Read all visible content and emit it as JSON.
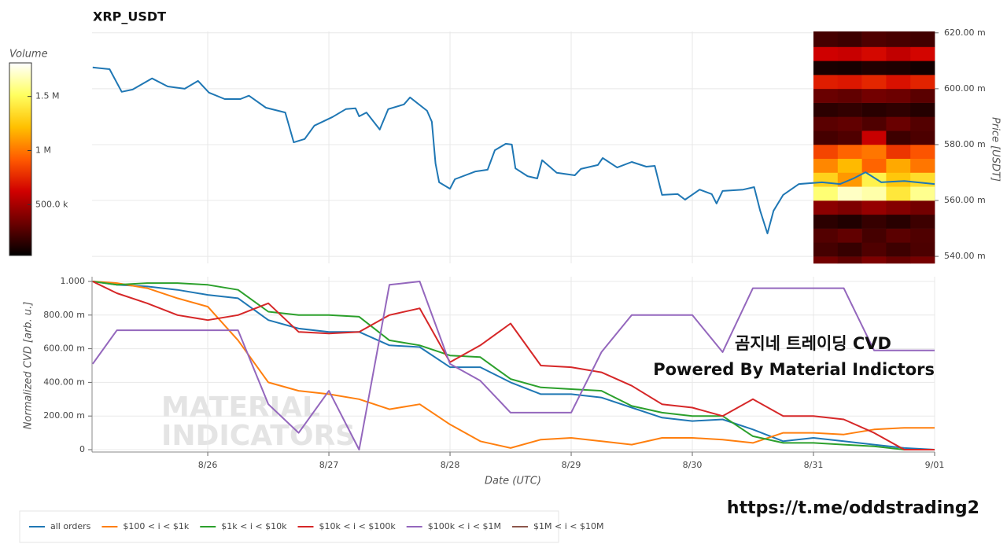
{
  "chart_data": [
    {
      "type": "line",
      "title": "XRP_USDT",
      "y_label": "Price [USDT]",
      "x": [
        25.05,
        25.19,
        25.29,
        25.38,
        25.54,
        25.67,
        25.81,
        25.92,
        26.01,
        26.14,
        26.27,
        26.34,
        26.48,
        26.64,
        26.71,
        26.8,
        26.88,
        27.03,
        27.14,
        27.22,
        27.25,
        27.31,
        27.42,
        27.49,
        27.62,
        27.67,
        27.81,
        27.85,
        27.88,
        27.91,
        28.0,
        28.04,
        28.21,
        28.31,
        28.37,
        28.46,
        28.51,
        28.54,
        28.64,
        28.72,
        28.76,
        28.88,
        29.03,
        29.08,
        29.22,
        29.26,
        29.38,
        29.5,
        29.62,
        29.69,
        29.75,
        29.88,
        29.94,
        30.06,
        30.16,
        30.2,
        30.25,
        30.42,
        30.51,
        30.56,
        30.62,
        30.67,
        30.75,
        30.88,
        31.07,
        31.22,
        31.33,
        31.43,
        31.56,
        31.75,
        32.0
      ],
      "series": [
        {
          "color": "#1f77b4",
          "values": [
            607.6,
            607.0,
            598.9,
            599.7,
            603.7,
            600.8,
            600.0,
            602.8,
            598.6,
            596.3,
            596.3,
            597.5,
            593.2,
            591.5,
            580.8,
            582.0,
            586.8,
            589.9,
            592.7,
            593.0,
            590.1,
            591.5,
            585.4,
            592.7,
            594.4,
            596.9,
            592.1,
            588.2,
            573.2,
            566.5,
            564.2,
            567.6,
            570.4,
            571.0,
            578.0,
            580.3,
            580.0,
            571.5,
            568.7,
            567.9,
            574.4,
            569.9,
            569.0,
            571.3,
            572.7,
            575.2,
            571.8,
            573.8,
            572.1,
            572.4,
            562.0,
            562.3,
            560.3,
            563.9,
            562.3,
            558.9,
            563.4,
            563.9,
            564.8,
            556.3,
            548.2,
            556.3,
            562.0,
            565.9,
            566.5,
            565.9,
            567.9,
            570.1,
            566.5,
            567.0,
            565.9
          ]
        }
      ],
      "xlim": [
        25.045,
        32
      ],
      "xticks": [
        26,
        27,
        28,
        29,
        30,
        31,
        32
      ],
      "ylim": [
        537.5,
        620.5
      ],
      "yticks": [
        {
          "value": 540,
          "label": "540.00 m"
        },
        {
          "value": 560,
          "label": "560.00 m"
        },
        {
          "value": 580,
          "label": "580.00 m"
        },
        {
          "value": 600,
          "label": "600.00 m"
        },
        {
          "value": 620,
          "label": "620.00 m"
        }
      ],
      "y_axis_side": "right",
      "grid": true,
      "heatmap": {
        "x_edges": [
          31,
          31.2,
          31.4,
          31.6,
          31.8,
          32
        ],
        "y_edges": [
          537.5,
          540,
          545,
          550,
          555,
          560,
          565,
          570,
          575,
          580,
          585,
          590,
          595,
          600,
          605,
          610,
          615,
          620.5
        ],
        "values": [
          [
            350000,
            300000,
            380000,
            320000,
            360000
          ],
          [
            220000,
            180000,
            250000,
            200000,
            240000
          ],
          [
            260000,
            300000,
            220000,
            280000,
            250000
          ],
          [
            150000,
            120000,
            180000,
            140000,
            200000
          ],
          [
            420000,
            380000,
            450000,
            400000,
            350000
          ],
          [
            1550000,
            1700000,
            1650000,
            1400000,
            1600000
          ],
          [
            1300000,
            1100000,
            1450000,
            1250000,
            1350000
          ],
          [
            1050000,
            1200000,
            950000,
            1150000,
            1000000
          ],
          [
            850000,
            950000,
            1000000,
            800000,
            900000
          ],
          [
            220000,
            250000,
            600000,
            200000,
            240000
          ],
          [
            280000,
            300000,
            250000,
            320000,
            260000
          ],
          [
            150000,
            170000,
            140000,
            160000,
            130000
          ],
          [
            320000,
            300000,
            350000,
            330000,
            280000
          ],
          [
            720000,
            700000,
            750000,
            680000,
            740000
          ],
          [
            100000,
            90000,
            120000,
            110000,
            80000
          ],
          [
            620000,
            600000,
            650000,
            580000,
            640000
          ],
          [
            220000,
            200000,
            250000,
            230000,
            210000
          ]
        ],
        "colormap": [
          "#000000",
          "#6b0000",
          "#d00000",
          "#ff5a00",
          "#ffc000",
          "#ffff60",
          "#ffffff"
        ],
        "colorbar": {
          "title": "Volume",
          "lim": [
            30000,
            1810000
          ],
          "ticks": [
            {
              "value": 500000,
              "label": "500.0 k"
            },
            {
              "value": 1000000,
              "label": "1 M"
            },
            {
              "value": 1500000,
              "label": "1.5 M"
            }
          ]
        }
      }
    },
    {
      "type": "line",
      "x_label": "Date (UTC)",
      "y_label": "Normalized CVD [arb. u.]",
      "x": [
        25.05,
        25.25,
        25.5,
        25.75,
        26,
        26.25,
        26.5,
        26.75,
        27,
        27.25,
        27.5,
        27.75,
        28,
        28.25,
        28.5,
        28.75,
        29,
        29.25,
        29.5,
        29.75,
        30,
        30.25,
        30.5,
        30.75,
        31,
        31.25,
        31.5,
        31.75,
        32
      ],
      "series": [
        {
          "name": "all orders",
          "color": "#1f77b4",
          "values": [
            1.0,
            0.98,
            0.97,
            0.95,
            0.92,
            0.9,
            0.77,
            0.72,
            0.7,
            0.7,
            0.62,
            0.61,
            0.49,
            0.49,
            0.4,
            0.33,
            0.33,
            0.31,
            0.25,
            0.19,
            0.17,
            0.18,
            0.12,
            0.05,
            0.07,
            0.05,
            0.03,
            0.01,
            0.0
          ]
        },
        {
          "name": "$100 < i < $1k",
          "color": "#ff7f0e",
          "values": [
            1.0,
            0.99,
            0.96,
            0.9,
            0.85,
            0.65,
            0.4,
            0.35,
            0.33,
            0.3,
            0.24,
            0.27,
            0.15,
            0.05,
            0.01,
            0.06,
            0.07,
            0.05,
            0.03,
            0.07,
            0.07,
            0.06,
            0.04,
            0.1,
            0.1,
            0.09,
            0.12,
            0.13,
            0.13
          ]
        },
        {
          "name": "$1k < i < $10k",
          "color": "#2ca02c",
          "values": [
            1.0,
            0.98,
            0.99,
            0.99,
            0.98,
            0.95,
            0.82,
            0.8,
            0.8,
            0.79,
            0.65,
            0.62,
            0.56,
            0.55,
            0.42,
            0.37,
            0.36,
            0.35,
            0.26,
            0.22,
            0.2,
            0.2,
            0.08,
            0.04,
            0.04,
            0.03,
            0.02,
            0.0,
            0.0
          ]
        },
        {
          "name": "$10k < i < $100k",
          "color": "#d62728",
          "values": [
            1.0,
            0.93,
            0.87,
            0.8,
            0.77,
            0.8,
            0.87,
            0.7,
            0.69,
            0.7,
            0.8,
            0.84,
            0.52,
            0.62,
            0.75,
            0.5,
            0.49,
            0.46,
            0.38,
            0.27,
            0.25,
            0.2,
            0.3,
            0.2,
            0.2,
            0.18,
            0.1,
            0.0,
            0.0
          ]
        },
        {
          "name": "$100k < i < $1M",
          "color": "#9467bd",
          "values": [
            0.51,
            0.71,
            0.71,
            0.71,
            0.71,
            0.71,
            0.27,
            0.1,
            0.35,
            0.0,
            0.98,
            1.0,
            0.51,
            0.41,
            0.22,
            0.22,
            0.22,
            0.58,
            0.8,
            0.8,
            0.8,
            0.58,
            0.96,
            0.96,
            0.96,
            0.96,
            0.59,
            0.59,
            0.59
          ]
        },
        {
          "name": "$1M < i < $10M",
          "color": "#8c564b",
          "values": [
            null,
            null,
            null,
            null,
            null,
            null,
            null,
            null,
            null,
            null,
            null,
            null,
            null,
            null,
            null,
            null,
            null,
            null,
            null,
            null,
            null,
            null,
            null,
            null,
            null,
            null,
            null,
            null,
            null
          ]
        }
      ],
      "xlim": [
        25.045,
        32
      ],
      "xticks": [
        {
          "value": 26,
          "label": "8/26"
        },
        {
          "value": 27,
          "label": "8/27"
        },
        {
          "value": 28,
          "label": "8/28"
        },
        {
          "value": 29,
          "label": "8/29"
        },
        {
          "value": 30,
          "label": "8/30"
        },
        {
          "value": 31,
          "label": "8/31"
        },
        {
          "value": 32,
          "label": "9/01"
        }
      ],
      "ylim": [
        -0.014,
        1.028
      ],
      "yticks": [
        {
          "value": 0,
          "label": "0"
        },
        {
          "value": 0.2,
          "label": "200.00 m"
        },
        {
          "value": 0.4,
          "label": "400.00 m"
        },
        {
          "value": 0.6,
          "label": "600.00 m"
        },
        {
          "value": 0.8,
          "label": "800.00 m"
        },
        {
          "value": 1,
          "label": "1.000"
        }
      ],
      "grid": true,
      "legend": "bottom-left",
      "annotations": [
        "곰지네 트레이딩 CVD",
        "Powered By Material Indictors"
      ]
    }
  ],
  "watermark": [
    "MATERIAL",
    "INDICATORS"
  ],
  "footer": "https://t.me/oddstrading2"
}
